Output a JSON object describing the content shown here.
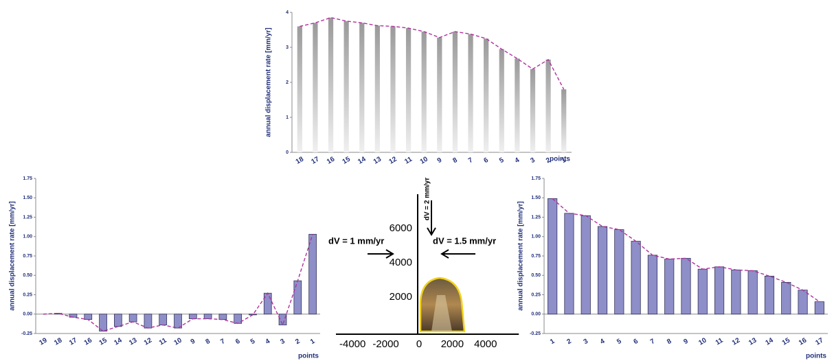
{
  "chart_data": [
    {
      "type": "bar",
      "y_label": "annual displacement rate [mm/yr]",
      "x_label": "points",
      "categories": [
        "18",
        "17",
        "16",
        "15",
        "14",
        "13",
        "12",
        "11",
        "10",
        "9",
        "8",
        "7",
        "6",
        "5",
        "4",
        "3",
        "2",
        "1"
      ],
      "values": [
        3.6,
        3.7,
        3.85,
        3.75,
        3.7,
        3.62,
        3.6,
        3.55,
        3.45,
        3.28,
        3.45,
        3.38,
        3.25,
        2.95,
        2.68,
        2.38,
        2.65,
        1.8
      ],
      "color": "#9a9a9a",
      "trend_color": "#b0309e",
      "ylim": [
        0,
        4
      ],
      "yticks": [
        0,
        1,
        2,
        3,
        4
      ]
    },
    {
      "type": "bar",
      "y_label": "annual displacement rate [mm/yr]",
      "x_label": "points",
      "categories": [
        "19",
        "18",
        "17",
        "16",
        "15",
        "14",
        "13",
        "12",
        "11",
        "10",
        "9",
        "8",
        "7",
        "6",
        "5",
        "4",
        "3",
        "2",
        "1"
      ],
      "values": [
        0.0,
        0.01,
        -0.04,
        -0.07,
        -0.22,
        -0.16,
        -0.1,
        -0.18,
        -0.14,
        -0.18,
        -0.06,
        -0.06,
        -0.07,
        -0.12,
        -0.01,
        0.27,
        -0.14,
        0.43,
        1.03
      ],
      "color": "#8e8ec8",
      "trend_color": "#b0309e",
      "ylim": [
        -0.25,
        1.75
      ],
      "yticks": [
        -0.25,
        {
          "value": 0,
          "label": "0.00"
        },
        0.25,
        {
          "value": 0.5,
          "label": "0.50"
        },
        0.75,
        {
          "value": 1,
          "label": "1.00"
        },
        1.25,
        {
          "value": 1.5,
          "label": "1.50"
        },
        1.75
      ]
    },
    {
      "type": "axes",
      "annotations": [
        "dV = 2 mm/yr",
        "dV = 1 mm/yr",
        "dV = 1.5 mm/yr"
      ],
      "xlim": [
        -5000,
        6000
      ],
      "ylim": [
        0,
        8000
      ],
      "xticks": [
        -4000,
        -2000,
        0,
        2000,
        4000
      ],
      "yticks": [
        2000,
        4000,
        6000
      ]
    },
    {
      "type": "bar",
      "y_label": "annual displacement rate [mm/yr]",
      "x_label": "points",
      "categories": [
        "1",
        "2",
        "3",
        "4",
        "5",
        "6",
        "7",
        "8",
        "9",
        "10",
        "11",
        "12",
        "13",
        "14",
        "15",
        "16",
        "17"
      ],
      "values": [
        1.49,
        1.3,
        1.27,
        1.13,
        1.09,
        0.94,
        0.76,
        0.71,
        0.72,
        0.58,
        0.61,
        0.57,
        0.56,
        0.49,
        0.41,
        0.31,
        0.16
      ],
      "color": "#8e8ec8",
      "trend_color": "#b0309e",
      "ylim": [
        -0.25,
        1.75
      ],
      "yticks": [
        -0.25,
        {
          "value": 0,
          "label": "0.00"
        },
        0.25,
        {
          "value": 0.5,
          "label": "0.50"
        },
        0.75,
        {
          "value": 1,
          "label": "1.00"
        },
        1.25,
        {
          "value": 1.5,
          "label": "1.50"
        },
        1.75
      ]
    }
  ]
}
